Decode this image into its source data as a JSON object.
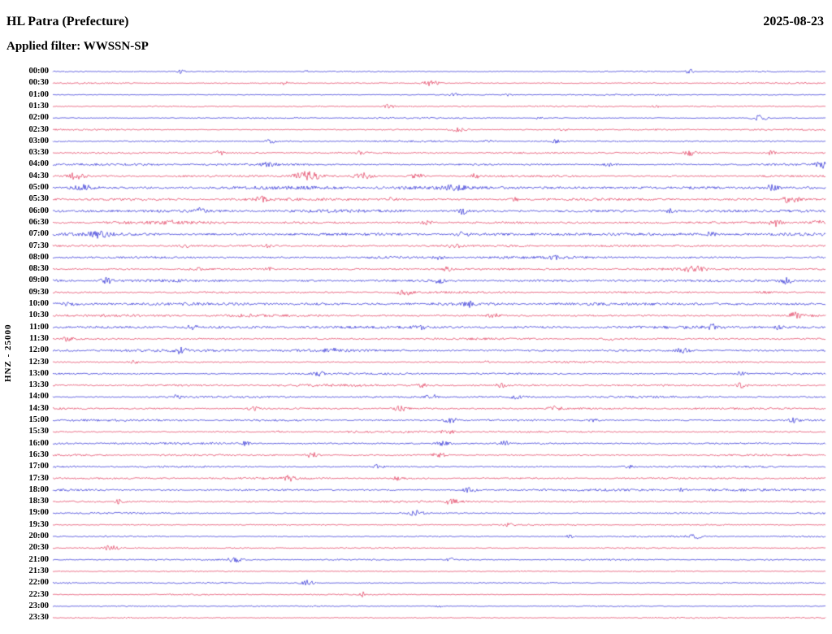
{
  "header": {
    "station_title": "HL Patra (Prefecture)",
    "date": "2025-08-23",
    "filter_label": "Applied filter: WWSSN-SP"
  },
  "axis": {
    "channel_label": "HNZ - 25000"
  },
  "chart_data": {
    "type": "line",
    "subtype": "helicorder-seismogram",
    "title": "HL Patra (Prefecture)",
    "date": "2025-08-23",
    "filter": "WWSSN-SP",
    "channel": "HNZ",
    "scale": 25000,
    "minutes_per_row": 30,
    "time_start": "00:00",
    "time_end": "23:30",
    "legend_position": "none",
    "grid": false,
    "colors": {
      "blue": "#0000cc",
      "red": "#dc143c"
    },
    "rows": [
      {
        "label": "00:00",
        "color": "b",
        "amp": 0.9,
        "bursts": [
          [
            0.165,
            2.2,
            0.004
          ],
          [
            0.33,
            1.6,
            0.003
          ],
          [
            0.825,
            2.6,
            0.004
          ]
        ]
      },
      {
        "label": "00:30",
        "color": "r",
        "amp": 1.0,
        "bursts": [
          [
            0.3,
            1.8,
            0.004
          ],
          [
            0.49,
            3.2,
            0.008
          ]
        ]
      },
      {
        "label": "01:00",
        "color": "b",
        "amp": 0.9,
        "bursts": [
          [
            0.52,
            2.0,
            0.004
          ],
          [
            0.59,
            1.5,
            0.003
          ]
        ]
      },
      {
        "label": "01:30",
        "color": "r",
        "amp": 1.0,
        "bursts": [
          [
            0.435,
            2.6,
            0.005
          ],
          [
            0.78,
            1.8,
            0.003
          ]
        ]
      },
      {
        "label": "02:00",
        "color": "b",
        "amp": 1.0,
        "bursts": [
          [
            0.63,
            1.8,
            0.003
          ],
          [
            0.915,
            4.5,
            0.006
          ]
        ]
      },
      {
        "label": "02:30",
        "color": "r",
        "amp": 1.1,
        "bursts": [
          [
            0.525,
            3.0,
            0.007
          ],
          [
            0.66,
            1.8,
            0.004
          ]
        ]
      },
      {
        "label": "03:00",
        "color": "b",
        "amp": 1.2,
        "bursts": [
          [
            0.28,
            2.6,
            0.005
          ],
          [
            0.565,
            1.8,
            0.004
          ],
          [
            0.65,
            2.0,
            0.004
          ]
        ]
      },
      {
        "label": "03:30",
        "color": "r",
        "amp": 1.3,
        "bursts": [
          [
            0.215,
            2.8,
            0.005
          ],
          [
            0.4,
            2.6,
            0.004
          ],
          [
            0.825,
            3.0,
            0.006
          ],
          [
            0.93,
            2.4,
            0.004
          ]
        ]
      },
      {
        "label": "04:00",
        "color": "b",
        "amp": 1.6,
        "bursts": [
          [
            0.28,
            2.2,
            0.006
          ],
          [
            0.72,
            2.0,
            0.005
          ],
          [
            0.995,
            5.0,
            0.006
          ]
        ]
      },
      {
        "label": "04:30",
        "color": "r",
        "amp": 1.5,
        "bursts": [
          [
            0.03,
            3.6,
            0.008
          ],
          [
            0.33,
            5.5,
            0.012
          ],
          [
            0.4,
            4.0,
            0.008
          ],
          [
            0.47,
            3.5,
            0.006
          ],
          [
            0.545,
            2.8,
            0.005
          ]
        ]
      },
      {
        "label": "05:00",
        "color": "b",
        "amp": 2.4,
        "bursts": [
          [
            0.04,
            3.0,
            0.01
          ],
          [
            0.52,
            2.5,
            0.008
          ],
          [
            0.93,
            3.0,
            0.008
          ]
        ]
      },
      {
        "label": "05:30",
        "color": "r",
        "amp": 2.0,
        "bursts": [
          [
            0.27,
            3.0,
            0.006
          ],
          [
            0.44,
            2.5,
            0.005
          ],
          [
            0.6,
            2.5,
            0.005
          ],
          [
            0.955,
            4.5,
            0.007
          ]
        ]
      },
      {
        "label": "06:00",
        "color": "b",
        "amp": 2.2,
        "bursts": [
          [
            0.19,
            2.5,
            0.005
          ],
          [
            0.53,
            3.5,
            0.004
          ],
          [
            0.8,
            2.5,
            0.006
          ]
        ]
      },
      {
        "label": "06:30",
        "color": "r",
        "amp": 2.0,
        "bursts": [
          [
            0.15,
            2.8,
            0.005
          ],
          [
            0.485,
            2.6,
            0.005
          ],
          [
            0.935,
            4.2,
            0.006
          ],
          [
            0.99,
            3.0,
            0.004
          ]
        ]
      },
      {
        "label": "07:00",
        "color": "b",
        "amp": 2.3,
        "bursts": [
          [
            0.06,
            3.2,
            0.01
          ],
          [
            0.53,
            2.4,
            0.005
          ],
          [
            0.85,
            2.4,
            0.005
          ]
        ]
      },
      {
        "label": "07:30",
        "color": "r",
        "amp": 1.6,
        "bursts": [
          [
            0.17,
            2.2,
            0.004
          ],
          [
            0.28,
            2.0,
            0.004
          ],
          [
            0.52,
            2.2,
            0.005
          ]
        ]
      },
      {
        "label": "08:00",
        "color": "b",
        "amp": 1.8,
        "bursts": [
          [
            0.5,
            2.2,
            0.005
          ],
          [
            0.65,
            2.0,
            0.004
          ]
        ]
      },
      {
        "label": "08:30",
        "color": "r",
        "amp": 1.6,
        "bursts": [
          [
            0.185,
            2.6,
            0.005
          ],
          [
            0.28,
            2.2,
            0.004
          ],
          [
            0.51,
            2.4,
            0.005
          ],
          [
            0.83,
            3.4,
            0.009
          ]
        ]
      },
      {
        "label": "09:00",
        "color": "b",
        "amp": 2.0,
        "bursts": [
          [
            0.07,
            3.0,
            0.006
          ],
          [
            0.5,
            2.4,
            0.005
          ],
          [
            0.95,
            3.2,
            0.006
          ]
        ]
      },
      {
        "label": "09:30",
        "color": "r",
        "amp": 1.4,
        "bursts": [
          [
            0.455,
            3.2,
            0.007
          ],
          [
            0.92,
            2.2,
            0.004
          ]
        ]
      },
      {
        "label": "10:00",
        "color": "b",
        "amp": 2.2,
        "bursts": [
          [
            0.02,
            2.6,
            0.005
          ],
          [
            0.54,
            3.0,
            0.006
          ]
        ]
      },
      {
        "label": "10:30",
        "color": "r",
        "amp": 1.8,
        "bursts": [
          [
            0.25,
            2.2,
            0.005
          ],
          [
            0.57,
            2.4,
            0.005
          ],
          [
            0.96,
            3.4,
            0.006
          ]
        ]
      },
      {
        "label": "11:00",
        "color": "b",
        "amp": 2.1,
        "bursts": [
          [
            0.18,
            2.4,
            0.005
          ],
          [
            0.475,
            2.6,
            0.005
          ],
          [
            0.855,
            3.2,
            0.006
          ],
          [
            0.94,
            2.6,
            0.004
          ]
        ]
      },
      {
        "label": "11:30",
        "color": "r",
        "amp": 1.5,
        "bursts": [
          [
            0.02,
            2.6,
            0.005
          ],
          [
            0.72,
            2.0,
            0.004
          ]
        ]
      },
      {
        "label": "12:00",
        "color": "b",
        "amp": 2.0,
        "bursts": [
          [
            0.165,
            2.8,
            0.005
          ],
          [
            0.36,
            2.2,
            0.005
          ],
          [
            0.815,
            3.0,
            0.006
          ]
        ]
      },
      {
        "label": "12:30",
        "color": "r",
        "amp": 1.3,
        "bursts": [
          [
            0.105,
            2.0,
            0.004
          ],
          [
            0.56,
            1.8,
            0.004
          ]
        ]
      },
      {
        "label": "13:00",
        "color": "b",
        "amp": 1.4,
        "bursts": [
          [
            0.345,
            3.0,
            0.005
          ],
          [
            0.89,
            2.2,
            0.004
          ]
        ]
      },
      {
        "label": "13:30",
        "color": "r",
        "amp": 1.6,
        "bursts": [
          [
            0.48,
            3.0,
            0.006
          ],
          [
            0.58,
            2.4,
            0.005
          ],
          [
            0.89,
            3.0,
            0.006
          ]
        ]
      },
      {
        "label": "14:00",
        "color": "b",
        "amp": 1.5,
        "bursts": [
          [
            0.16,
            2.2,
            0.004
          ],
          [
            0.49,
            3.0,
            0.006
          ],
          [
            0.6,
            2.4,
            0.005
          ]
        ]
      },
      {
        "label": "14:30",
        "color": "r",
        "amp": 1.5,
        "bursts": [
          [
            0.26,
            2.2,
            0.005
          ],
          [
            0.45,
            3.0,
            0.006
          ],
          [
            0.65,
            3.0,
            0.006
          ]
        ]
      },
      {
        "label": "15:00",
        "color": "b",
        "amp": 1.5,
        "bursts": [
          [
            0.515,
            3.4,
            0.006
          ],
          [
            0.7,
            2.0,
            0.004
          ],
          [
            0.96,
            2.4,
            0.005
          ]
        ]
      },
      {
        "label": "15:30",
        "color": "r",
        "amp": 1.4,
        "bursts": [
          [
            0.29,
            2.0,
            0.004
          ],
          [
            0.51,
            2.6,
            0.006
          ]
        ]
      },
      {
        "label": "16:00",
        "color": "b",
        "amp": 1.5,
        "bursts": [
          [
            0.25,
            2.4,
            0.005
          ],
          [
            0.505,
            2.8,
            0.006
          ],
          [
            0.585,
            2.6,
            0.005
          ]
        ]
      },
      {
        "label": "16:30",
        "color": "r",
        "amp": 1.4,
        "bursts": [
          [
            0.335,
            3.2,
            0.006
          ],
          [
            0.5,
            2.8,
            0.006
          ]
        ]
      },
      {
        "label": "17:00",
        "color": "b",
        "amp": 1.4,
        "bursts": [
          [
            0.42,
            2.0,
            0.005
          ],
          [
            0.745,
            2.0,
            0.005
          ]
        ]
      },
      {
        "label": "17:30",
        "color": "r",
        "amp": 1.4,
        "bursts": [
          [
            0.305,
            3.0,
            0.006
          ],
          [
            0.445,
            2.4,
            0.005
          ]
        ]
      },
      {
        "label": "18:00",
        "color": "b",
        "amp": 1.8,
        "bursts": [
          [
            0.54,
            3.0,
            0.006
          ],
          [
            0.815,
            2.4,
            0.005
          ]
        ]
      },
      {
        "label": "18:30",
        "color": "r",
        "amp": 1.4,
        "bursts": [
          [
            0.085,
            2.6,
            0.005
          ],
          [
            0.515,
            3.0,
            0.006
          ]
        ]
      },
      {
        "label": "19:00",
        "color": "b",
        "amp": 1.2,
        "bursts": [
          [
            0.47,
            3.2,
            0.007
          ]
        ]
      },
      {
        "label": "19:30",
        "color": "r",
        "amp": 1.0,
        "bursts": [
          [
            0.59,
            1.8,
            0.004
          ]
        ]
      },
      {
        "label": "20:00",
        "color": "b",
        "amp": 1.1,
        "bursts": [
          [
            0.67,
            1.8,
            0.004
          ],
          [
            0.83,
            2.8,
            0.006
          ]
        ]
      },
      {
        "label": "20:30",
        "color": "r",
        "amp": 1.0,
        "bursts": [
          [
            0.075,
            3.0,
            0.007
          ]
        ]
      },
      {
        "label": "21:00",
        "color": "b",
        "amp": 1.1,
        "bursts": [
          [
            0.235,
            3.0,
            0.006
          ],
          [
            0.515,
            2.0,
            0.004
          ]
        ]
      },
      {
        "label": "21:30",
        "color": "r",
        "amp": 0.9,
        "bursts": []
      },
      {
        "label": "22:00",
        "color": "b",
        "amp": 1.0,
        "bursts": [
          [
            0.33,
            3.2,
            0.006
          ]
        ]
      },
      {
        "label": "22:30",
        "color": "r",
        "amp": 0.9,
        "bursts": [
          [
            0.4,
            4.0,
            0.002
          ]
        ]
      },
      {
        "label": "23:00",
        "color": "b",
        "amp": 0.9,
        "bursts": [
          [
            0.5,
            1.6,
            0.003
          ]
        ]
      },
      {
        "label": "23:30",
        "color": "r",
        "amp": 0.9,
        "bursts": []
      }
    ]
  }
}
